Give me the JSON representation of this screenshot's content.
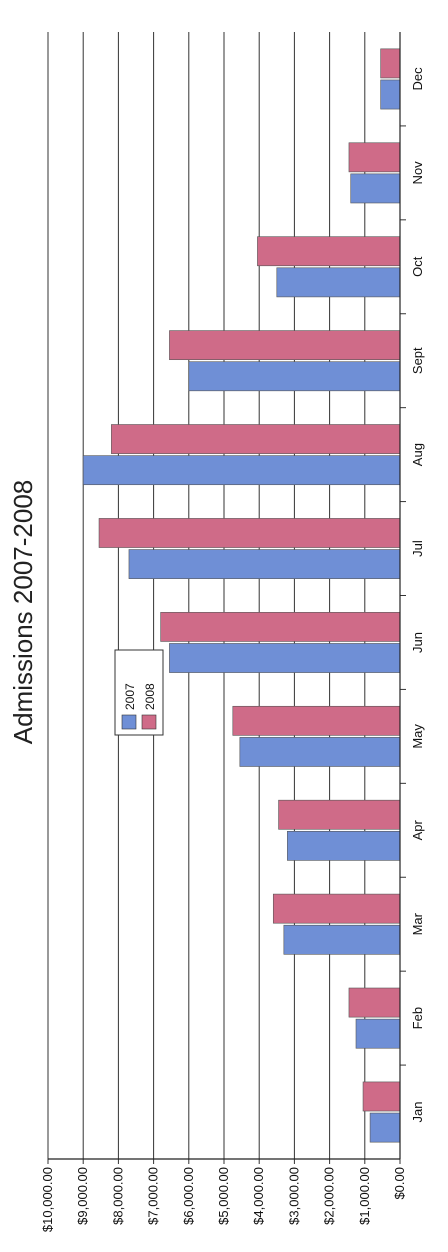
{
  "chart_data": {
    "type": "bar",
    "orientation": "rotated-90",
    "title": "Admissions 2007-2008",
    "categories": [
      "Jan",
      "Feb",
      "Mar",
      "Apr",
      "May",
      "Jun",
      "Jul",
      "Aug",
      "Sept",
      "Oct",
      "Nov",
      "Dec"
    ],
    "series": [
      {
        "name": "2007",
        "color": "#6f8fd6",
        "values": [
          850,
          1250,
          3300,
          3200,
          4550,
          6550,
          7700,
          9000,
          6000,
          3500,
          1400,
          550
        ]
      },
      {
        "name": "2008",
        "color": "#cf6b88",
        "values": [
          1050,
          1450,
          3600,
          3450,
          4750,
          6800,
          8550,
          8200,
          6550,
          4050,
          1450,
          550
        ]
      }
    ],
    "yticks": [
      "$0.00",
      "$1,000.00",
      "$2,000.00",
      "$3,000.00",
      "$4,000.00",
      "$5,000.00",
      "$6,000.00",
      "$7,000.00",
      "$8,000.00",
      "$9,000.00",
      "$10,000.00"
    ],
    "ylim": [
      0,
      10000
    ],
    "grid": true,
    "legend_position": "left-middle"
  }
}
